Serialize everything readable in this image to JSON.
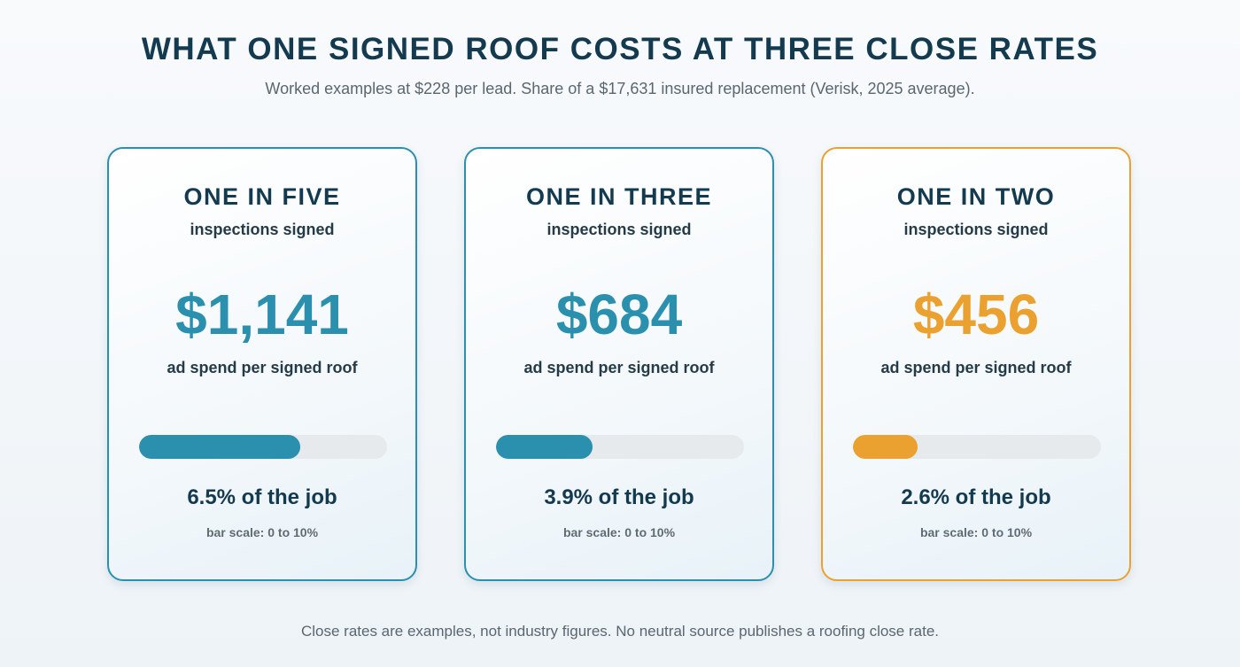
{
  "header": {
    "title": "WHAT ONE SIGNED ROOF COSTS AT THREE CLOSE RATES",
    "subtitle": "Worked examples at $228 per lead. Share of a $17,631 insured replacement (Verisk, 2025 average)."
  },
  "cards": [
    {
      "rate": "ONE IN FIVE",
      "rate_sub": "inspections signed",
      "amount": "$1,141",
      "amount_label": "ad spend per signed roof",
      "bar_percent": 6.5,
      "bar_max_percent": 10,
      "share_text": "6.5% of the job",
      "scale_text": "bar scale: 0 to 10%",
      "accent_color": "#2b8fae"
    },
    {
      "rate": "ONE IN THREE",
      "rate_sub": "inspections signed",
      "amount": "$684",
      "amount_label": "ad spend per signed roof",
      "bar_percent": 3.9,
      "bar_max_percent": 10,
      "share_text": "3.9% of the job",
      "scale_text": "bar scale: 0 to 10%",
      "accent_color": "#2b8fae"
    },
    {
      "rate": "ONE IN TWO",
      "rate_sub": "inspections signed",
      "amount": "$456",
      "amount_label": "ad spend per signed roof",
      "bar_percent": 2.6,
      "bar_max_percent": 10,
      "share_text": "2.6% of the job",
      "scale_text": "bar scale: 0 to 10%",
      "accent_color": "#eba12f"
    }
  ],
  "footer": {
    "note": "Close rates are examples, not industry figures. No neutral source publishes a roofing close rate."
  }
}
